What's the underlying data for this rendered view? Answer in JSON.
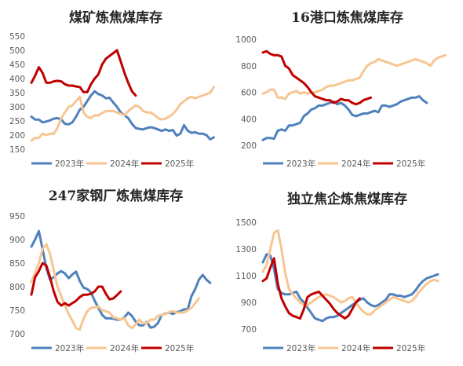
{
  "colors": {
    "s2023": "#4f81bd",
    "s2024": "#f7c592",
    "s2025": "#c00000",
    "tick_text": "#595959",
    "title_text": "#262626"
  },
  "chart_data": [
    {
      "type": "line",
      "title": "煤矿炼焦煤库存",
      "x": "week of year (1-52)",
      "ylim": [
        150,
        550
      ],
      "yticks": [
        150,
        200,
        250,
        300,
        350,
        400,
        450,
        500,
        550
      ],
      "legend_position": "bottom",
      "series": [
        {
          "name": "2023年",
          "color": "#4f81bd",
          "values": [
            265,
            255,
            255,
            245,
            248,
            252,
            258,
            260,
            255,
            240,
            238,
            245,
            265,
            290,
            300,
            320,
            340,
            355,
            345,
            340,
            330,
            332,
            315,
            300,
            280,
            270,
            260,
            240,
            225,
            222,
            220,
            225,
            228,
            225,
            220,
            215,
            220,
            215,
            218,
            198,
            205,
            235,
            215,
            208,
            210,
            205,
            205,
            200,
            185,
            192
          ]
        },
        {
          "name": "2024年",
          "color": "#f7c592",
          "values": [
            180,
            190,
            190,
            205,
            200,
            205,
            205,
            225,
            260,
            280,
            300,
            305,
            320,
            335,
            280,
            265,
            260,
            270,
            270,
            278,
            285,
            285,
            285,
            280,
            275,
            270,
            285,
            295,
            305,
            300,
            285,
            280,
            280,
            272,
            260,
            255,
            258,
            265,
            275,
            290,
            310,
            320,
            330,
            335,
            330,
            335,
            340,
            345,
            350,
            370
          ]
        },
        {
          "name": "2025年",
          "color": "#c00000",
          "values": [
            385,
            410,
            440,
            420,
            385,
            385,
            390,
            392,
            390,
            380,
            375,
            375,
            372,
            370,
            352,
            352,
            380,
            400,
            415,
            450,
            470,
            480,
            490,
            500,
            460,
            420,
            385,
            355,
            340
          ]
        }
      ]
    },
    {
      "type": "line",
      "title": "16港口炼焦煤库存",
      "x": "week of year (1-52)",
      "ylim": [
        200,
        1000
      ],
      "yticks": [
        200,
        400,
        600,
        800,
        1000
      ],
      "legend_position": "bottom",
      "series": [
        {
          "name": "2023年",
          "color": "#4f81bd",
          "values": [
            240,
            255,
            255,
            250,
            310,
            320,
            310,
            350,
            350,
            360,
            370,
            420,
            440,
            470,
            480,
            500,
            500,
            510,
            520,
            530,
            510,
            520,
            500,
            470,
            430,
            420,
            430,
            440,
            440,
            450,
            460,
            450,
            500,
            500,
            490,
            500,
            510,
            530,
            540,
            550,
            560,
            560,
            570,
            540,
            520
          ]
        },
        {
          "name": "2024年",
          "color": "#f7c592",
          "values": [
            590,
            600,
            620,
            620,
            560,
            560,
            550,
            590,
            600,
            610,
            590,
            600,
            590,
            600,
            600,
            610,
            620,
            640,
            650,
            650,
            660,
            670,
            680,
            690,
            690,
            700,
            710,
            760,
            800,
            820,
            830,
            850,
            840,
            830,
            820,
            810,
            800,
            810,
            820,
            830,
            840,
            850,
            840,
            830,
            820,
            800,
            840,
            860,
            870,
            880
          ]
        },
        {
          "name": "2025年",
          "color": "#c00000",
          "values": [
            900,
            910,
            890,
            880,
            880,
            870,
            800,
            780,
            730,
            710,
            690,
            670,
            640,
            600,
            570,
            560,
            550,
            540,
            540,
            520,
            530,
            550,
            540,
            540,
            520,
            510,
            520,
            540,
            550,
            560
          ]
        }
      ]
    },
    {
      "type": "line",
      "title": "247家钢厂炼焦煤库存",
      "x": "week of year (1-52)",
      "ylim": [
        700,
        950
      ],
      "yticks": [
        700,
        750,
        800,
        850,
        900,
        950
      ],
      "legend_position": "bottom",
      "series": [
        {
          "name": "2023年",
          "color": "#4f81bd",
          "values": [
            885,
            900,
            918,
            880,
            840,
            815,
            820,
            828,
            833,
            828,
            818,
            826,
            832,
            812,
            798,
            795,
            788,
            770,
            755,
            740,
            733,
            733,
            732,
            730,
            730,
            735,
            745,
            738,
            726,
            718,
            718,
            725,
            713,
            715,
            723,
            740,
            743,
            745,
            742,
            746,
            748,
            752,
            752,
            780,
            795,
            815,
            825,
            815,
            808
          ]
        },
        {
          "name": "2024年",
          "color": "#f7c592",
          "values": [
            810,
            830,
            850,
            880,
            890,
            870,
            835,
            800,
            780,
            760,
            742,
            728,
            712,
            709,
            732,
            748,
            755,
            756,
            758,
            750,
            748,
            745,
            735,
            733,
            730,
            733,
            718,
            712,
            720,
            730,
            722,
            723,
            730,
            730,
            738,
            740,
            742,
            746,
            748,
            745,
            745,
            745,
            750,
            755,
            765,
            775
          ]
        },
        {
          "name": "2025年",
          "color": "#c00000",
          "values": [
            783,
            820,
            833,
            850,
            845,
            820,
            790,
            768,
            760,
            765,
            760,
            765,
            770,
            778,
            783,
            783,
            785,
            790,
            800,
            800,
            785,
            773,
            775,
            782,
            790
          ]
        }
      ]
    },
    {
      "type": "line",
      "title": "独立焦企炼焦煤库存",
      "x": "week of year (1-52)",
      "ylim": [
        700,
        1500
      ],
      "yticks": [
        700,
        900,
        1100,
        1300,
        1500
      ],
      "legend_position": "bottom",
      "series": [
        {
          "name": "2023年",
          "color": "#4f81bd",
          "values": [
            1200,
            1260,
            1250,
            1150,
            1000,
            970,
            960,
            960,
            970,
            980,
            930,
            900,
            860,
            820,
            780,
            770,
            760,
            780,
            790,
            790,
            800,
            820,
            840,
            860,
            880,
            900,
            920,
            930,
            900,
            880,
            870,
            880,
            900,
            920,
            960,
            960,
            950,
            950,
            940,
            950,
            960,
            990,
            1030,
            1060,
            1080,
            1090,
            1100,
            1110
          ]
        },
        {
          "name": "2024年",
          "color": "#f7c592",
          "values": [
            1130,
            1180,
            1300,
            1420,
            1440,
            1300,
            1120,
            1000,
            960,
            930,
            900,
            880,
            880,
            900,
            920,
            940,
            950,
            960,
            950,
            940,
            920,
            900,
            910,
            930,
            940,
            900,
            860,
            830,
            810,
            810,
            840,
            860,
            880,
            900,
            920,
            940,
            930,
            920,
            910,
            900,
            910,
            940,
            980,
            1010,
            1040,
            1060,
            1070,
            1060
          ]
        },
        {
          "name": "2025年",
          "color": "#c00000",
          "values": [
            1060,
            1080,
            1160,
            1230,
            1040,
            930,
            870,
            820,
            800,
            790,
            780,
            850,
            940,
            960,
            970,
            980,
            950,
            920,
            890,
            850,
            820,
            800,
            780,
            800,
            850,
            900,
            930
          ]
        }
      ]
    }
  ]
}
